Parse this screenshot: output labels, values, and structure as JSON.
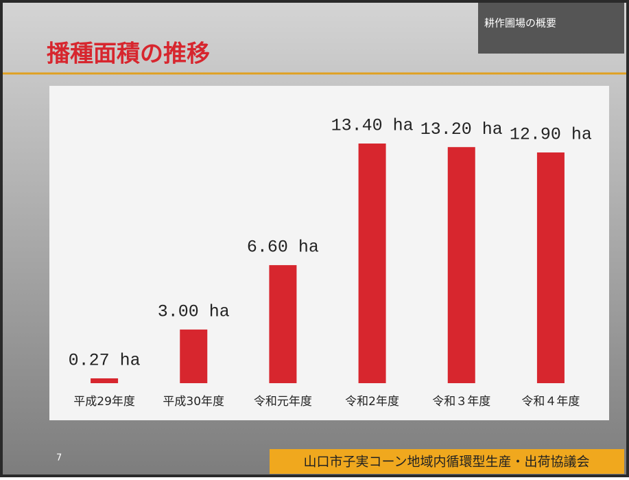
{
  "chart_data": {
    "type": "bar",
    "title": "播種面積の推移",
    "categories": [
      "平成29年度",
      "平成30年度",
      "令和元年度",
      "令和2年度",
      "令和３年度",
      "令和４年度"
    ],
    "values": [
      0.27,
      3.0,
      6.6,
      13.4,
      13.2,
      12.9
    ],
    "value_labels": [
      "0.27 ha",
      "3.00 ha",
      "6.60 ha",
      "13.40 ha",
      "13.20 ha",
      "12.90 ha"
    ],
    "color": "#d7262e"
  },
  "slide": {
    "section": "耕作圃場の概要",
    "page": 7,
    "footer": "山口市子実コーン地域内循環型生産・出荷協議会"
  }
}
